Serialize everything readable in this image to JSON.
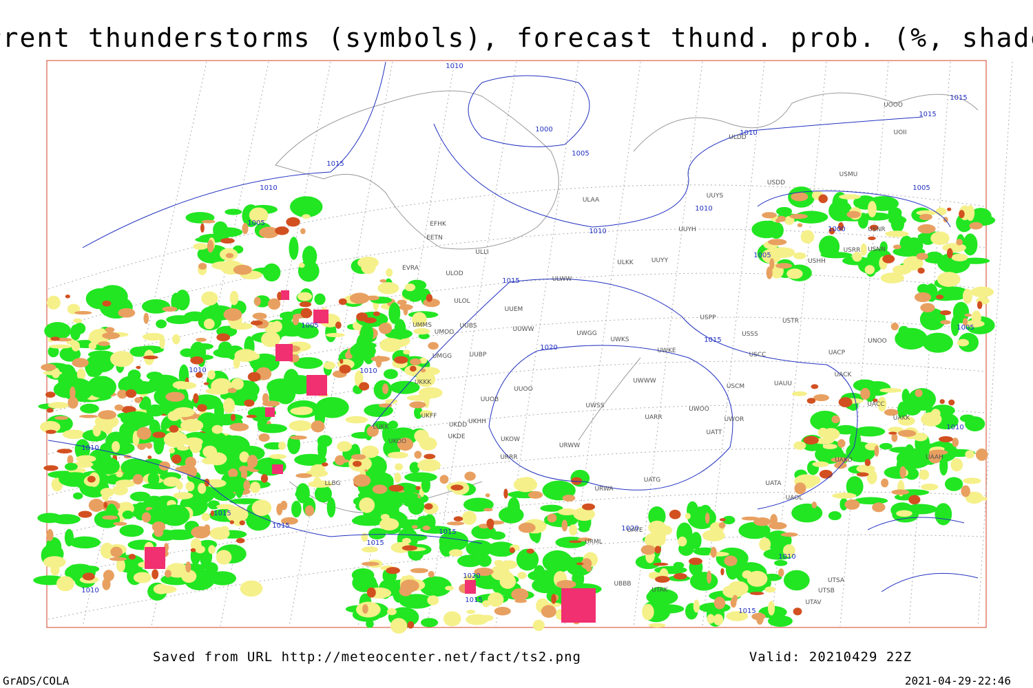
{
  "header": {
    "title": "Current thunderstorms (symbols), forecast thund. prob. (%, shaded)"
  },
  "footer": {
    "source": "Saved from URL http://meteocenter.net/fact/ts2.png",
    "valid": "Valid: 20210429 22Z",
    "credit": "GrADS/COLA",
    "timestamp": "2021-04-29-22:46"
  },
  "map": {
    "isobar_labels": [
      "1010",
      "1015",
      "1010",
      "1005",
      "1000",
      "1005",
      "1010",
      "1015",
      "1015",
      "1010",
      "1010",
      "1005",
      "1005",
      "1000",
      "1015",
      "1020",
      "1015",
      "1010",
      "1010",
      "1005",
      "1010",
      "1015",
      "1015",
      "1015",
      "1015",
      "1020",
      "1015",
      "1010",
      "1020",
      "1010",
      "1015",
      "1010",
      "1005"
    ],
    "stations": [
      "ULAA",
      "ULWW",
      "UUEM",
      "UUWW",
      "UWGG",
      "UWKS",
      "UWKE",
      "UWWW",
      "UUOO",
      "UUOB",
      "UWSS",
      "UARR",
      "UWOO",
      "UWOR",
      "UATT",
      "URWW",
      "UKOW",
      "URRR",
      "UKHH",
      "UKDD",
      "UKDE",
      "UKOO",
      "UKFF",
      "LUKK",
      "UKKK",
      "UMGG",
      "UUBP",
      "UMOO",
      "UMMS",
      "UUBS",
      "ULOL",
      "ULOD",
      "UUYY",
      "ULKK",
      "UUYH",
      "UUYS",
      "USDD",
      "USMU",
      "ULDD",
      "UOOO",
      "UOII",
      "USRR",
      "USNN",
      "USNR",
      "USHH",
      "USPP",
      "USSS",
      "USTR",
      "UNOO",
      "USCC",
      "UACP",
      "UACK",
      "USCM",
      "UAUU",
      "UACC",
      "UAKK",
      "UAKD",
      "UATG",
      "URWA",
      "UATA",
      "UAOL",
      "UATE",
      "URML",
      "UBBB",
      "UTAK",
      "UTSA",
      "UTSB",
      "UTAV",
      "UAAH",
      "LLBG",
      "ULLI",
      "EFHK",
      "EETN",
      "EVRA"
    ]
  }
}
